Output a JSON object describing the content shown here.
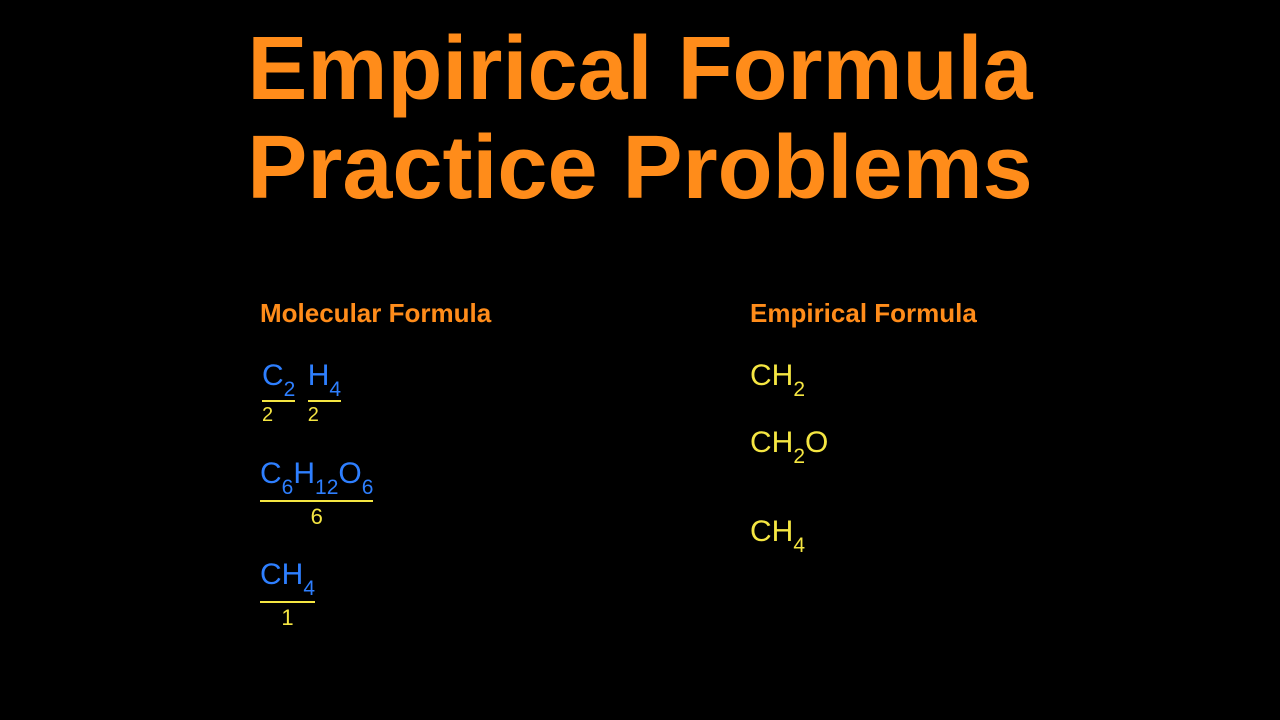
{
  "title_line1": "Empirical Formula",
  "title_line2": "Practice Problems",
  "left": {
    "header": "Molecular Formula",
    "rows": [
      {
        "parts": [
          {
            "el": "C",
            "sub": "2",
            "div": "2"
          },
          {
            "el": "H",
            "sub": "4",
            "div": "2"
          }
        ]
      },
      {
        "formula_html": "C<sub>6</sub>H<sub>12</sub>O<sub>6</sub>",
        "divisor": "6"
      },
      {
        "formula_html": "CH<sub>4</sub>",
        "divisor": "1"
      }
    ]
  },
  "right": {
    "header": "Empirical Formula",
    "rows": [
      "CH<sub>2</sub>",
      "CH<sub>2</sub>O",
      "CH<sub>4</sub>"
    ]
  },
  "colors": {
    "bg": "#000000",
    "orange": "#ff8c1a",
    "blue": "#2e7fff",
    "yellow": "#f5e642"
  }
}
